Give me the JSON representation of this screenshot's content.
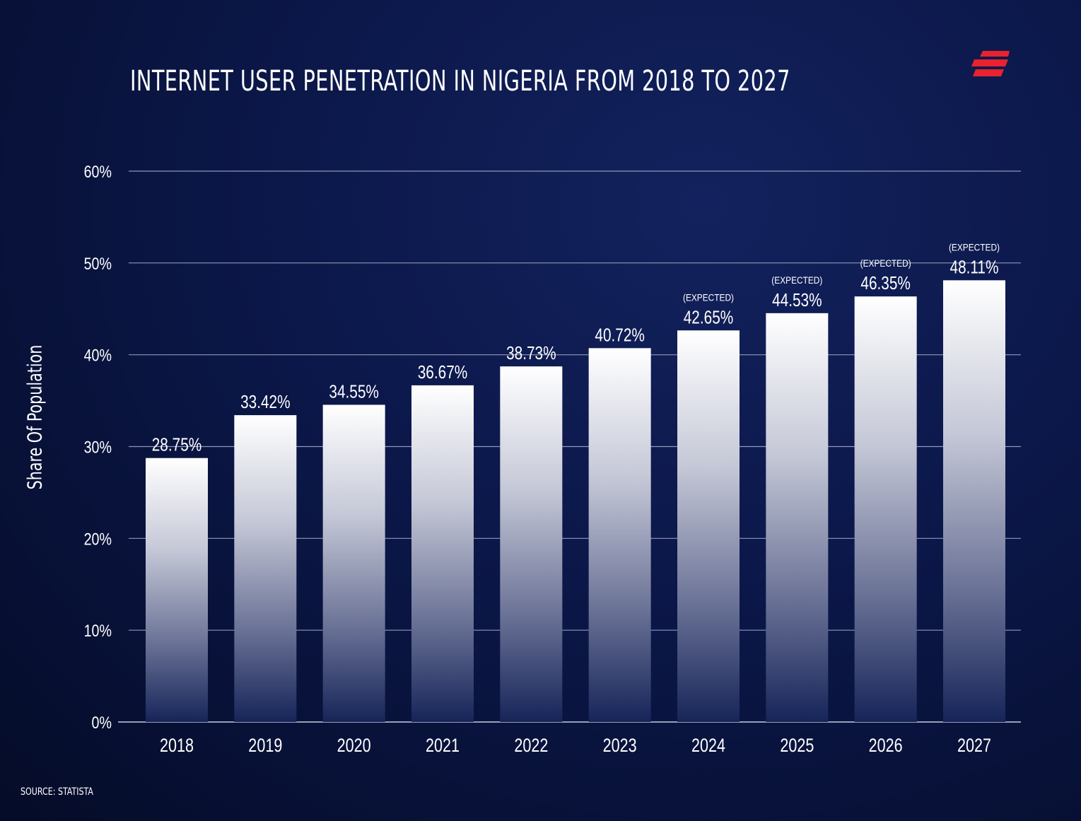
{
  "chart_data": {
    "type": "bar",
    "title": "INTERNET USER PENETRATION IN NIGERIA FROM 2018 TO 2027",
    "xlabel": "",
    "ylabel": "Share Of Population",
    "ylim": [
      0,
      60
    ],
    "yticks": [
      "0%",
      "10%",
      "20%",
      "30%",
      "40%",
      "50%",
      "60%"
    ],
    "grid": true,
    "categories": [
      "2018",
      "2019",
      "2020",
      "2021",
      "2022",
      "2023",
      "2024",
      "2025",
      "2026",
      "2027"
    ],
    "values": [
      28.75,
      33.42,
      34.55,
      36.67,
      38.73,
      40.72,
      42.65,
      44.53,
      46.35,
      48.11
    ],
    "value_labels": [
      "28.75%",
      "33.42%",
      "34.55%",
      "36.67%",
      "38.73%",
      "40.72%",
      "42.65%",
      "44.53%",
      "46.35%",
      "48.11%"
    ],
    "annotations": [
      "",
      "",
      "",
      "",
      "",
      "",
      "(EXPECTED)",
      "(EXPECTED)",
      "(EXPECTED)",
      "(EXPECTED)"
    ]
  },
  "source": "SOURCE: STATISTA",
  "logo": {
    "icon": "brand-logo-icon",
    "color": "#e8222e"
  },
  "colors": {
    "bar_top": "#ffffff",
    "bar_bottom": "#162458",
    "grid": "#8e97b8",
    "text": "#ffffff"
  }
}
